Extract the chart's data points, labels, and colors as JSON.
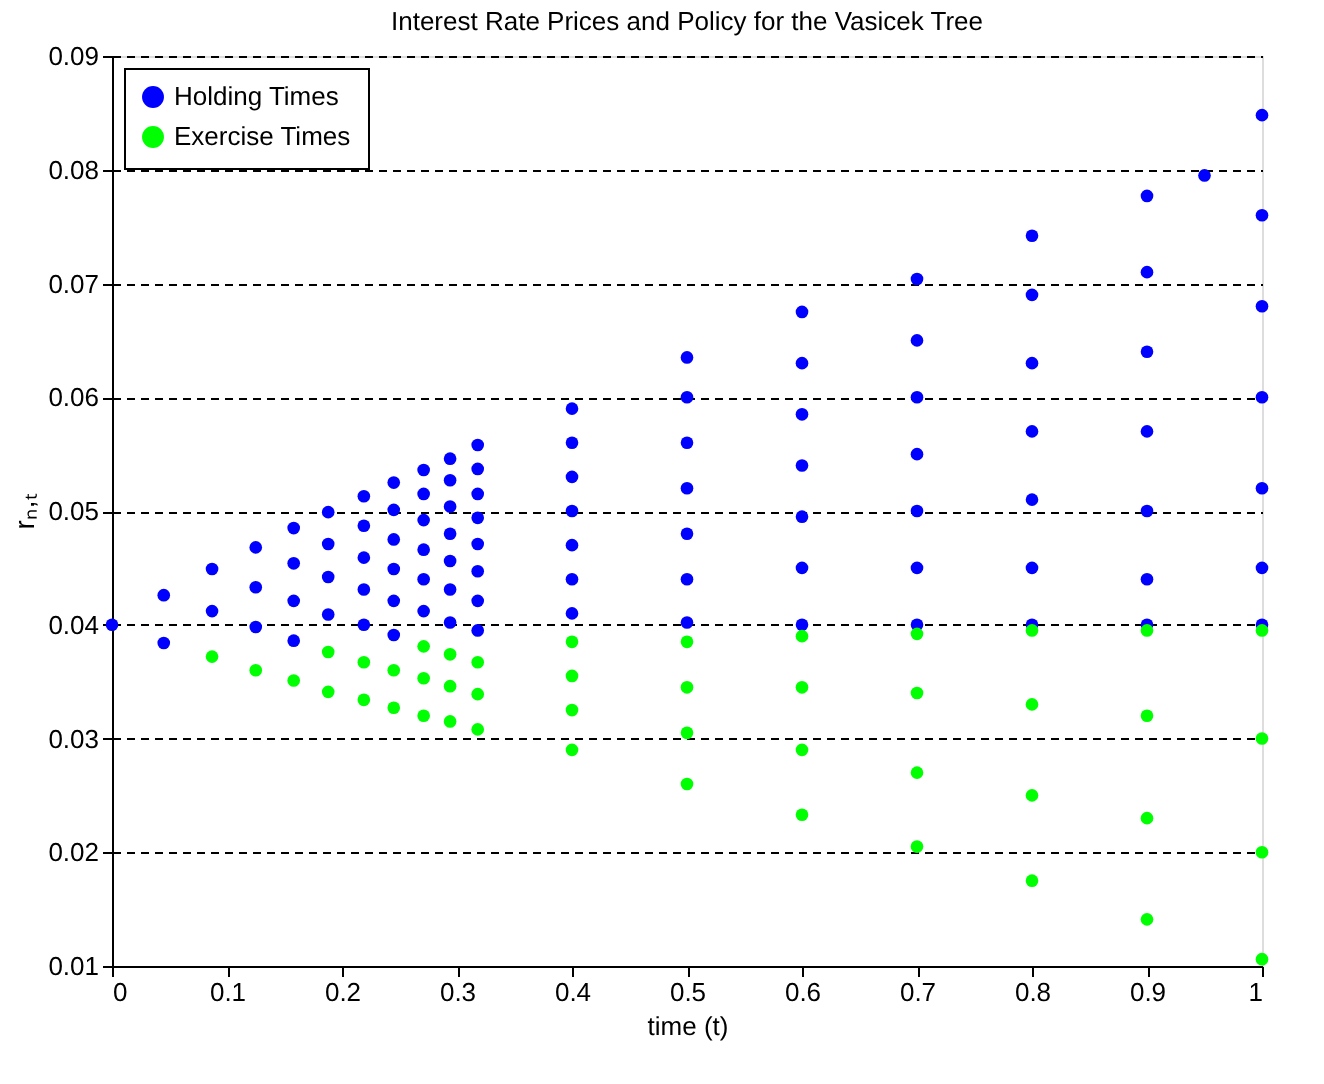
{
  "chart_data": {
    "type": "scatter",
    "title": "Interest Rate Prices and Policy for the Vasicek Tree",
    "xlabel": "time (t)",
    "ylabel": "rₙ,ₜ",
    "xlim": [
      0,
      1
    ],
    "xticks": [
      0,
      0.1,
      0.2,
      0.3,
      0.4,
      0.5,
      0.6,
      0.7,
      0.8,
      0.9,
      1
    ],
    "ylim": [
      0.01,
      0.09
    ],
    "yticks": [
      0.01,
      0.02,
      0.03,
      0.04,
      0.05,
      0.06,
      0.07,
      0.08,
      0.09
    ],
    "grid": "y",
    "line_style": "dashed",
    "legend": "top left",
    "marker": "circle",
    "series": [
      {
        "name": "Holding Times",
        "color": "#0000ff",
        "x": [
          0,
          0.045,
          0.045,
          0.087,
          0.087,
          0.125,
          0.125,
          0.125,
          0.158,
          0.158,
          0.158,
          0.158,
          0.188,
          0.188,
          0.188,
          0.188,
          0.219,
          0.219,
          0.219,
          0.219,
          0.219,
          0.245,
          0.245,
          0.245,
          0.245,
          0.245,
          0.245,
          0.271,
          0.271,
          0.271,
          0.271,
          0.271,
          0.271,
          0.294,
          0.294,
          0.294,
          0.294,
          0.294,
          0.294,
          0.294,
          0.318,
          0.318,
          0.318,
          0.318,
          0.318,
          0.318,
          0.318,
          0.318,
          0.4,
          0.4,
          0.4,
          0.4,
          0.4,
          0.4,
          0.4,
          0.5,
          0.5,
          0.5,
          0.5,
          0.5,
          0.5,
          0.5,
          0.6,
          0.6,
          0.6,
          0.6,
          0.6,
          0.6,
          0.6,
          0.7,
          0.7,
          0.7,
          0.7,
          0.7,
          0.7,
          0.7,
          0.8,
          0.8,
          0.8,
          0.8,
          0.8,
          0.8,
          0.8,
          0.9,
          0.9,
          0.9,
          0.9,
          0.9,
          0.9,
          0.9,
          0.95,
          1,
          1,
          1,
          1,
          1,
          1,
          1
        ],
        "values": [
          0.04,
          0.0426,
          0.0384,
          0.0449,
          0.0412,
          0.0468,
          0.0433,
          0.0398,
          0.0485,
          0.0454,
          0.0421,
          0.0386,
          0.0499,
          0.0471,
          0.0442,
          0.0409,
          0.0513,
          0.0487,
          0.0459,
          0.0431,
          0.04,
          0.0525,
          0.0501,
          0.0475,
          0.0449,
          0.0421,
          0.0391,
          0.0536,
          0.0515,
          0.0492,
          0.0466,
          0.044,
          0.0412,
          0.0546,
          0.0527,
          0.0504,
          0.048,
          0.0456,
          0.0431,
          0.0402,
          0.0558,
          0.0537,
          0.0515,
          0.0494,
          0.0471,
          0.0447,
          0.0421,
          0.0395,
          0.059,
          0.056,
          0.053,
          0.05,
          0.047,
          0.044,
          0.041,
          0.0635,
          0.06,
          0.056,
          0.052,
          0.048,
          0.044,
          0.0402,
          0.0675,
          0.063,
          0.0585,
          0.054,
          0.0495,
          0.045,
          0.04,
          0.0704,
          0.065,
          0.06,
          0.055,
          0.05,
          0.045,
          0.04,
          0.0742,
          0.069,
          0.063,
          0.057,
          0.051,
          0.045,
          0.04,
          0.0777,
          0.071,
          0.064,
          0.057,
          0.05,
          0.044,
          0.04,
          0.0795,
          0.0848,
          0.076,
          0.068,
          0.06,
          0.052,
          0.045,
          0.04
        ]
      },
      {
        "name": "Exercise Times",
        "color": "#00ff00",
        "x": [
          0.087,
          0.125,
          0.158,
          0.188,
          0.188,
          0.219,
          0.219,
          0.245,
          0.245,
          0.271,
          0.271,
          0.271,
          0.294,
          0.294,
          0.294,
          0.318,
          0.318,
          0.318,
          0.4,
          0.4,
          0.4,
          0.4,
          0.5,
          0.5,
          0.5,
          0.5,
          0.6,
          0.6,
          0.6,
          0.6,
          0.7,
          0.7,
          0.7,
          0.7,
          0.8,
          0.8,
          0.8,
          0.8,
          0.9,
          0.9,
          0.9,
          0.9,
          1,
          1,
          1,
          1
        ],
        "values": [
          0.0372,
          0.036,
          0.0351,
          0.0376,
          0.0341,
          0.0367,
          0.0334,
          0.036,
          0.0327,
          0.0381,
          0.0353,
          0.032,
          0.0374,
          0.0346,
          0.0315,
          0.0367,
          0.0339,
          0.0308,
          0.0385,
          0.0355,
          0.0325,
          0.029,
          0.0385,
          0.0345,
          0.0305,
          0.026,
          0.039,
          0.0345,
          0.029,
          0.0233,
          0.0392,
          0.034,
          0.027,
          0.0205,
          0.0395,
          0.033,
          0.025,
          0.0175,
          0.0395,
          0.032,
          0.023,
          0.0141,
          0.0395,
          0.03,
          0.02,
          0.0106
        ]
      }
    ]
  }
}
